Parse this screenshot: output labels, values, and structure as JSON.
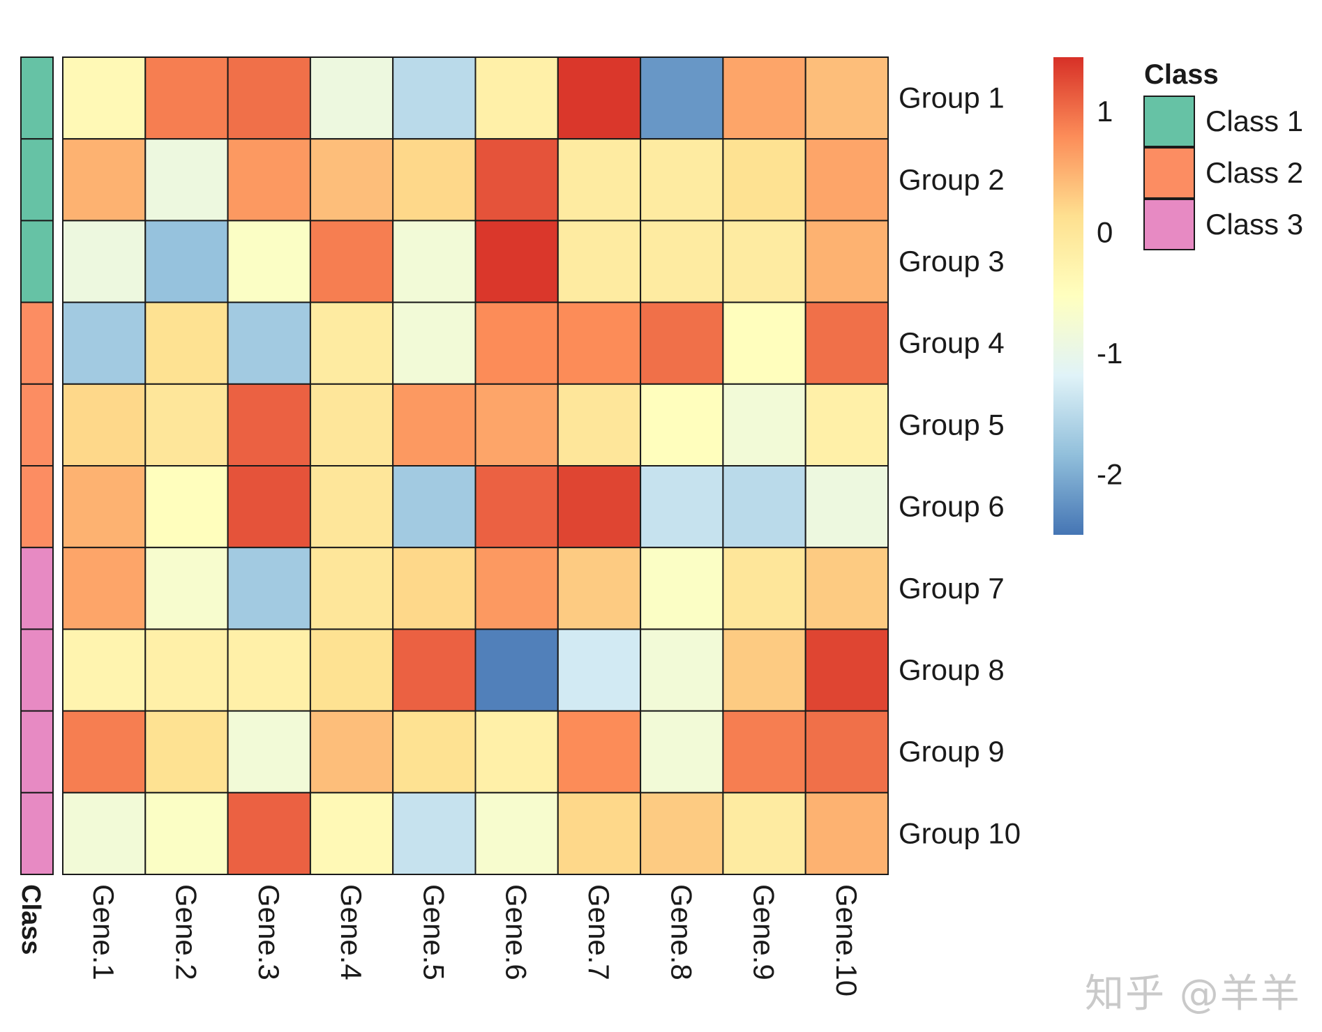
{
  "chart_data": {
    "type": "heatmap",
    "rows": [
      "Group 1",
      "Group 2",
      "Group 3",
      "Group 4",
      "Group 5",
      "Group 6",
      "Group 7",
      "Group 8",
      "Group 9",
      "Group 10"
    ],
    "columns": [
      "Gene.1",
      "Gene.2",
      "Gene.3",
      "Gene.4",
      "Gene.5",
      "Gene.6",
      "Gene.7",
      "Gene.8",
      "Gene.9",
      "Gene.10"
    ],
    "values": [
      [
        -0.4,
        0.9,
        1.0,
        -0.9,
        -1.5,
        -0.2,
        1.4,
        -2.2,
        0.6,
        0.4
      ],
      [
        0.5,
        -0.9,
        0.7,
        0.4,
        0.2,
        1.2,
        -0.1,
        -0.1,
        0.1,
        0.6
      ],
      [
        -0.9,
        -1.8,
        -0.6,
        0.9,
        -0.8,
        1.4,
        -0.1,
        -0.1,
        -0.1,
        0.5
      ],
      [
        -1.7,
        0.1,
        -1.7,
        -0.1,
        -0.8,
        0.8,
        0.8,
        1.0,
        -0.5,
        1.0
      ],
      [
        0.2,
        0.0,
        1.1,
        0.0,
        0.7,
        0.6,
        0.0,
        -0.5,
        -0.8,
        -0.2
      ],
      [
        0.5,
        -0.5,
        1.2,
        0.0,
        -1.7,
        1.1,
        1.3,
        -1.4,
        -1.5,
        -0.9
      ],
      [
        0.6,
        -0.7,
        -1.7,
        0.0,
        0.2,
        0.7,
        0.3,
        -0.6,
        0.0,
        0.3
      ],
      [
        -0.3,
        -0.2,
        -0.2,
        0.1,
        1.1,
        -2.4,
        -1.3,
        -0.8,
        0.3,
        1.3
      ],
      [
        0.9,
        0.1,
        -0.8,
        0.4,
        0.1,
        -0.2,
        0.8,
        -0.8,
        0.9,
        1.0
      ],
      [
        -0.8,
        -0.6,
        1.1,
        -0.4,
        -1.4,
        -0.7,
        0.2,
        0.3,
        -0.1,
        0.5
      ]
    ],
    "row_class": [
      "Class 1",
      "Class 1",
      "Class 1",
      "Class 2",
      "Class 2",
      "Class 2",
      "Class 3",
      "Class 3",
      "Class 3",
      "Class 3"
    ],
    "annotation_label": "Class",
    "legend_title": "Class",
    "legend_items": [
      {
        "label": "Class 1",
        "color": "#66C2A5"
      },
      {
        "label": "Class 2",
        "color": "#FC8D62"
      },
      {
        "label": "Class 3",
        "color": "#E78AC3"
      }
    ],
    "colorbar": {
      "range": [
        -2.5,
        1.45
      ],
      "ticks": [
        1,
        0,
        -1,
        -2
      ],
      "tick_labels": [
        "1",
        "0",
        "-1",
        "-2"
      ],
      "palette": [
        "#4575B4",
        "#91BFDB",
        "#E0F3F8",
        "#FFFFBF",
        "#FEE090",
        "#FC8D59",
        "#D73027"
      ]
    }
  },
  "watermark": "知乎 @羊羊"
}
